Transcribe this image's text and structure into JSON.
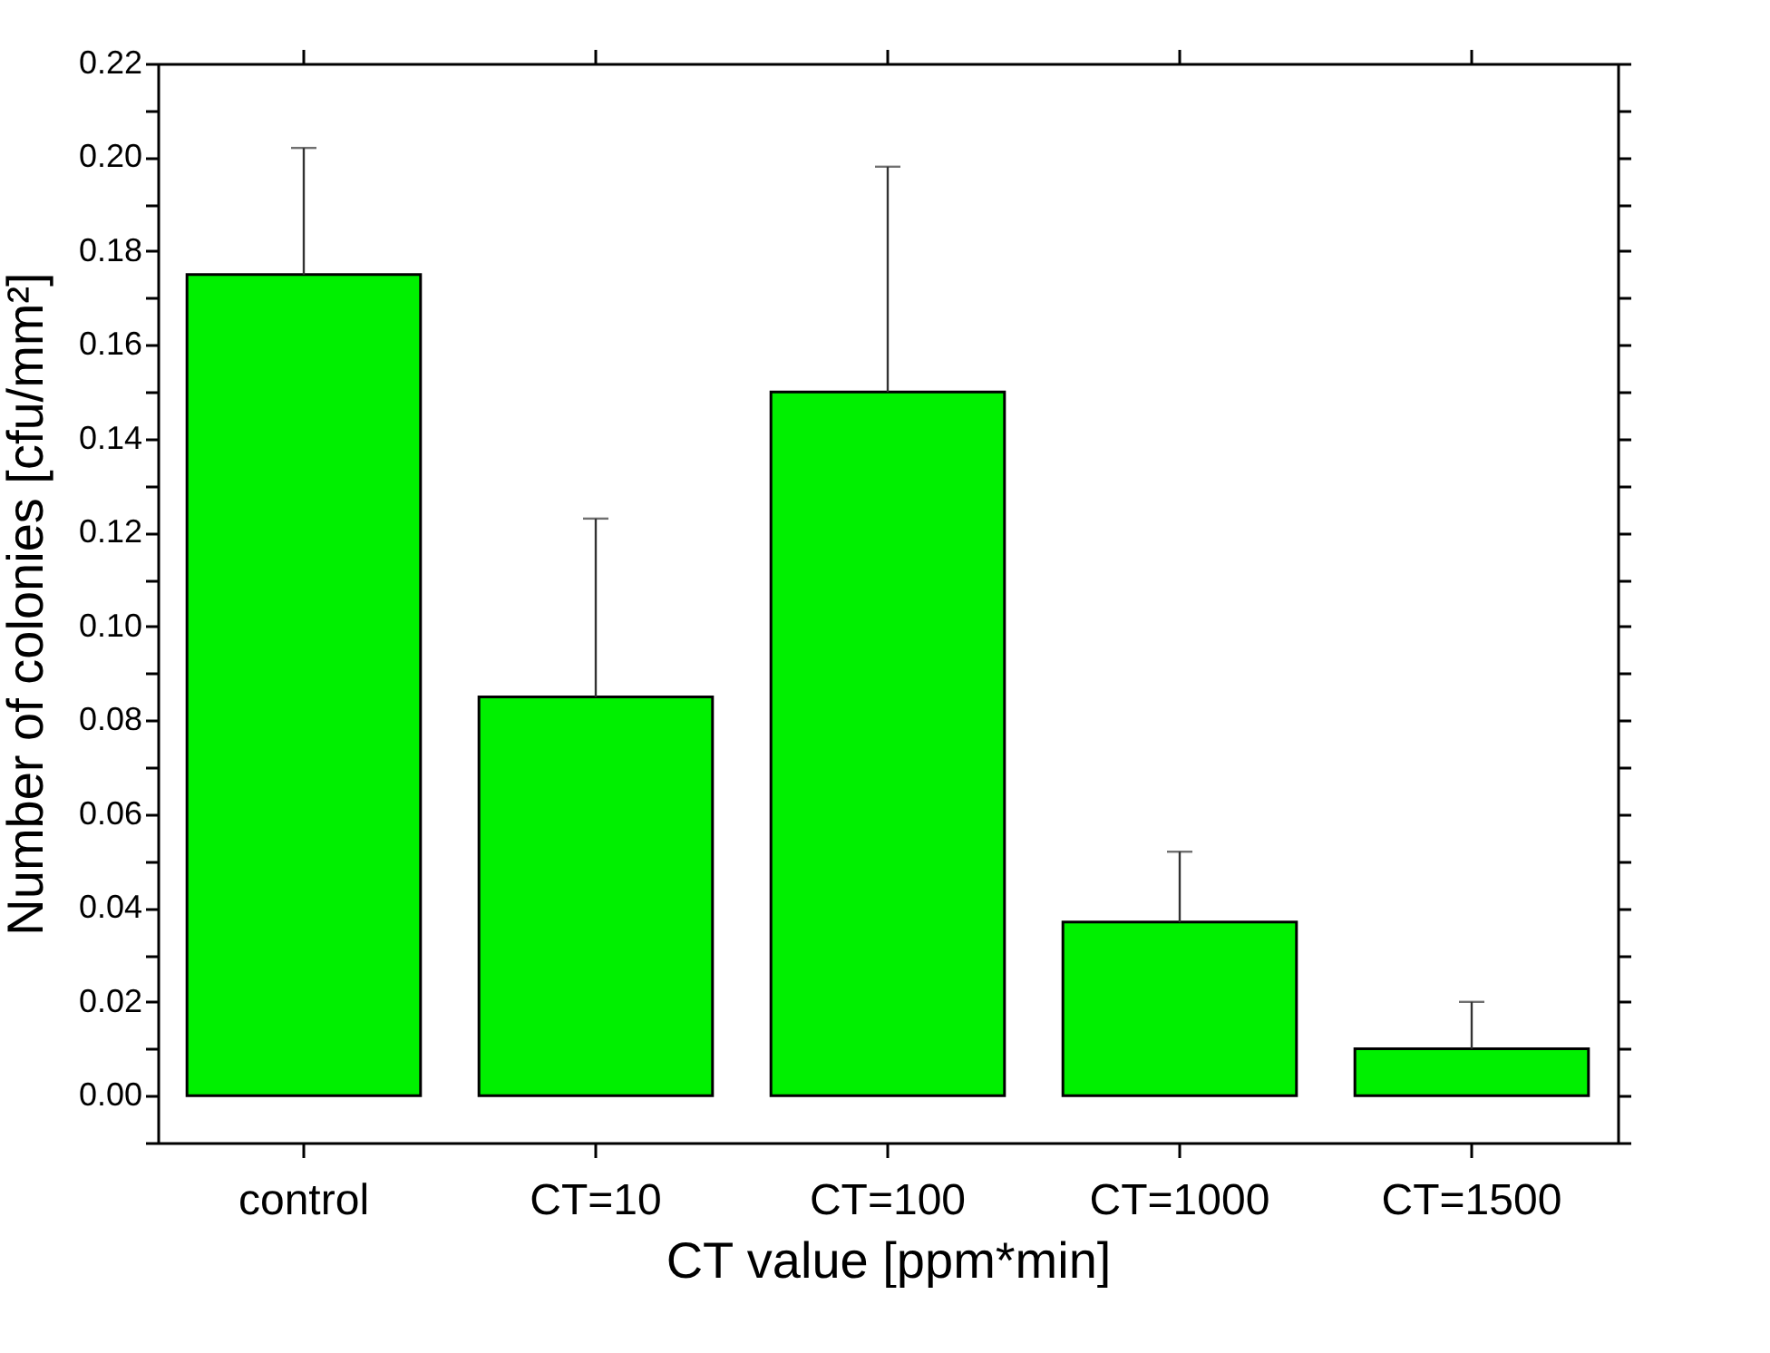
{
  "chart_data": {
    "type": "bar",
    "xlabel": "CT value [ppm*min]",
    "ylabel": "Number of colonies [cfu/mm²]",
    "categories": [
      "control",
      "CT=10",
      "CT=100",
      "CT=1000",
      "CT=1500"
    ],
    "values": [
      0.175,
      0.085,
      0.15,
      0.037,
      0.01
    ],
    "errors": [
      [
        0.175,
        0.202
      ],
      [
        0.085,
        0.123
      ],
      [
        0.15,
        0.198
      ],
      [
        0.037,
        0.052
      ],
      [
        0.01,
        0.02
      ]
    ],
    "color": "#00f000",
    "ylim": [
      -0.01,
      0.22
    ],
    "yticks": [
      {
        "value": -0.01,
        "label": null
      },
      "0.00",
      {
        "value": 0.01,
        "label": null
      },
      {
        "value": 0.02,
        "label": "0.02"
      },
      {
        "value": 0.03,
        "label": null
      },
      {
        "value": 0.04,
        "label": "0.04"
      },
      {
        "value": 0.05,
        "label": null
      },
      {
        "value": 0.06,
        "label": "0.06"
      },
      {
        "value": 0.07,
        "label": null
      },
      {
        "value": 0.08,
        "label": "0.08"
      },
      {
        "value": 0.09,
        "label": null
      },
      {
        "value": 0.1,
        "label": "0.10"
      },
      {
        "value": 0.11,
        "label": null
      },
      {
        "value": 0.12,
        "label": "0.12"
      },
      {
        "value": 0.13,
        "label": null
      },
      {
        "value": 0.14,
        "label": "0.14"
      },
      {
        "value": 0.15,
        "label": null
      },
      {
        "value": 0.16,
        "label": "0.16"
      },
      {
        "value": 0.17,
        "label": null
      },
      {
        "value": 0.18,
        "label": "0.18"
      },
      {
        "value": 0.19,
        "label": null
      },
      {
        "value": 0.2,
        "label": "0.20"
      },
      {
        "value": 0.21,
        "label": null
      },
      {
        "value": 0.22,
        "label": "0.22"
      }
    ],
    "grid": false
  }
}
